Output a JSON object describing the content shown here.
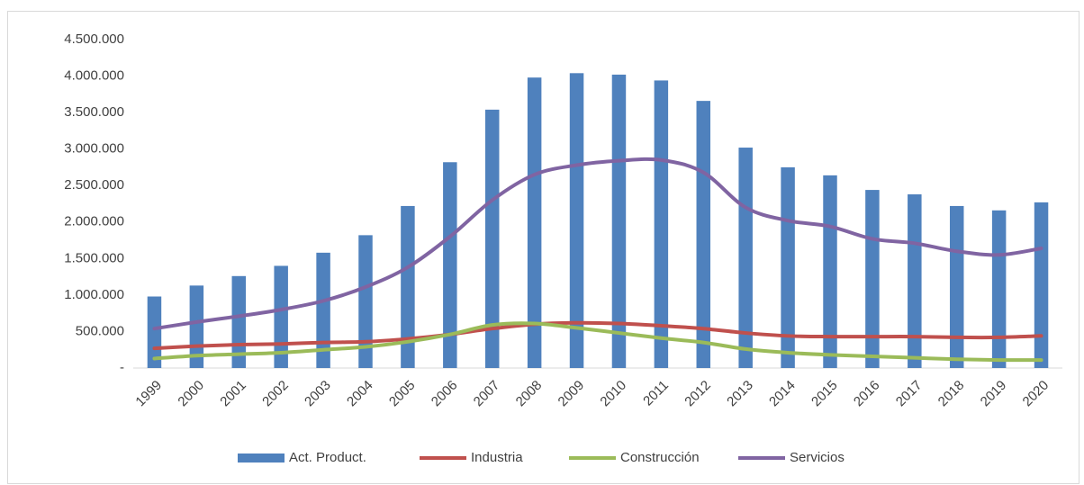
{
  "chart_data": {
    "type": "bar_line",
    "categories": [
      "1999",
      "2000",
      "2001",
      "2002",
      "2003",
      "2004",
      "2005",
      "2006",
      "2007",
      "2008",
      "2009",
      "2010",
      "2011",
      "2012",
      "2013",
      "2014",
      "2015",
      "2016",
      "2017",
      "2018",
      "2019",
      "2020"
    ],
    "series": [
      {
        "name": "Act. Product.",
        "type": "bar",
        "color": "#4f81bd",
        "values": [
          980000,
          1130000,
          1260000,
          1400000,
          1580000,
          1820000,
          2220000,
          2820000,
          3540000,
          3980000,
          4040000,
          4020000,
          3940000,
          3660000,
          3020000,
          2750000,
          2640000,
          2440000,
          2380000,
          2220000,
          2160000,
          2270000
        ]
      },
      {
        "name": "Industria",
        "type": "line",
        "color": "#c0504d",
        "values": [
          270000,
          300000,
          320000,
          330000,
          350000,
          360000,
          400000,
          460000,
          540000,
          600000,
          620000,
          610000,
          580000,
          540000,
          480000,
          440000,
          430000,
          430000,
          430000,
          420000,
          420000,
          440000
        ]
      },
      {
        "name": "Construcción",
        "type": "line",
        "color": "#9bbb59",
        "values": [
          130000,
          170000,
          190000,
          210000,
          250000,
          290000,
          360000,
          460000,
          590000,
          610000,
          550000,
          480000,
          410000,
          350000,
          260000,
          210000,
          180000,
          160000,
          140000,
          120000,
          110000,
          110000
        ]
      },
      {
        "name": "Servicios",
        "type": "line",
        "color": "#8064a2",
        "values": [
          540000,
          630000,
          710000,
          800000,
          920000,
          1110000,
          1380000,
          1800000,
          2300000,
          2650000,
          2780000,
          2840000,
          2850000,
          2680000,
          2200000,
          2020000,
          1940000,
          1770000,
          1710000,
          1600000,
          1550000,
          1640000
        ]
      }
    ],
    "ylim": [
      0,
      4500000
    ],
    "yticks": [
      {
        "value": 0,
        "label": "-"
      },
      {
        "value": 500000,
        "label": "500.000"
      },
      {
        "value": 1000000,
        "label": "1.000.000"
      },
      {
        "value": 1500000,
        "label": "1.500.000"
      },
      {
        "value": 2000000,
        "label": "2.000.000"
      },
      {
        "value": 2500000,
        "label": "2.500.000"
      },
      {
        "value": 3000000,
        "label": "3.000.000"
      },
      {
        "value": 3500000,
        "label": "3.500.000"
      },
      {
        "value": 4000000,
        "label": "4.000.000"
      },
      {
        "value": 4500000,
        "label": "4.500.000"
      }
    ],
    "grid": false,
    "legend": "bottom"
  }
}
